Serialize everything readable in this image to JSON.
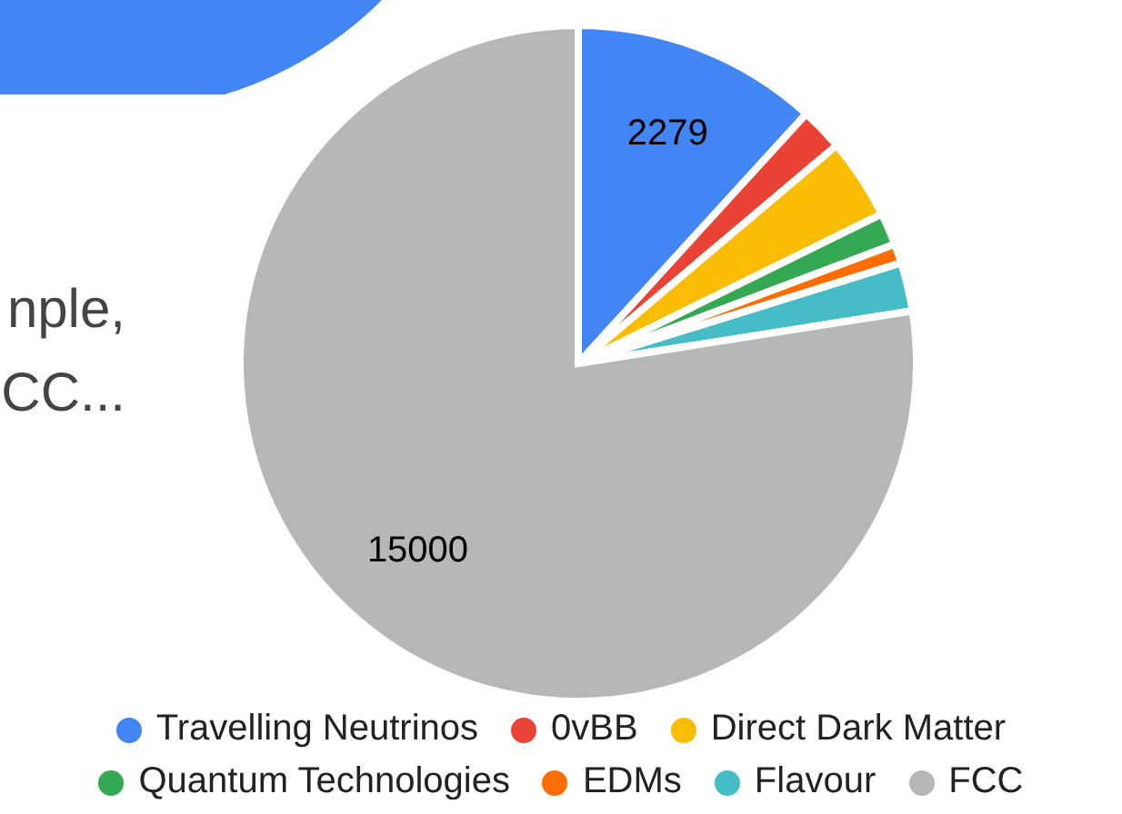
{
  "chart_data": {
    "type": "pie",
    "categories": [
      "Travelling Neutrinos",
      "0vBB",
      "Direct Dark Matter",
      "Quantum Technologies",
      "EDMs",
      "Flavour",
      "FCC"
    ],
    "values": [
      2279,
      400,
      750,
      300,
      180,
      450,
      15000
    ],
    "colors": [
      "#4285f4",
      "#ea4335",
      "#fbbc04",
      "#34a853",
      "#ff6d01",
      "#46bdc6",
      "#b7b7b7"
    ],
    "value_labels": [
      "2279",
      null,
      null,
      null,
      null,
      null,
      "15000"
    ],
    "legend": "bottom",
    "annotations": [
      "nple,",
      "CC..."
    ]
  }
}
